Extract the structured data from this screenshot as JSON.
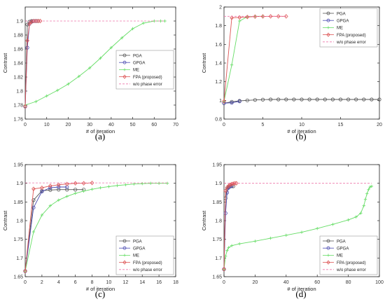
{
  "chart_data": [
    {
      "type": "line",
      "caption": "(a)",
      "xlabel": "# of iteration",
      "ylabel": "Contrast",
      "xlim": [
        0,
        70
      ],
      "ylim": [
        1.76,
        1.92
      ],
      "xticks": [
        0,
        10,
        20,
        30,
        40,
        50,
        60,
        70
      ],
      "xtick_labels": [
        "0",
        "10",
        "20",
        "30",
        "40",
        "50",
        "60",
        "70"
      ],
      "yticks": [
        1.76,
        1.78,
        1.8,
        1.82,
        1.84,
        1.86,
        1.88,
        1.9
      ],
      "ytick_labels": [
        "1.76",
        "1.78",
        "1.8",
        "1.82",
        "1.84",
        "1.86",
        "1.88",
        "1.9"
      ],
      "grid": false,
      "legend_position": "center-right",
      "series": [
        {
          "name": "PGA",
          "color": "#555555",
          "marker": "circle",
          "x": [
            0,
            1,
            2,
            3,
            4,
            5,
            6
          ],
          "y": [
            1.778,
            1.895,
            1.899,
            1.9,
            1.9,
            1.9,
            1.9
          ]
        },
        {
          "name": "GPGA",
          "color": "#4a4ab0",
          "marker": "circle",
          "x": [
            0,
            1,
            2,
            3,
            4,
            5
          ],
          "y": [
            1.778,
            1.862,
            1.896,
            1.899,
            1.9,
            1.9
          ]
        },
        {
          "name": "ME",
          "color": "#66dd66",
          "marker": "plus",
          "x": [
            0,
            5,
            10,
            15,
            20,
            25,
            30,
            35,
            40,
            45,
            50,
            55,
            60,
            63,
            65
          ],
          "y": [
            1.78,
            1.785,
            1.793,
            1.801,
            1.81,
            1.821,
            1.833,
            1.847,
            1.862,
            1.876,
            1.889,
            1.897,
            1.9,
            1.9,
            1.9
          ]
        },
        {
          "name": "FPA (proposed)",
          "color": "#dd5555",
          "marker": "diamond",
          "x": [
            0,
            1,
            2,
            3,
            4,
            5,
            6,
            7
          ],
          "y": [
            1.778,
            1.872,
            1.896,
            1.899,
            1.9,
            1.9,
            1.9,
            1.9
          ]
        },
        {
          "name": "w/o phase error",
          "color": "#ee77aa",
          "marker": "none",
          "dashed": true,
          "x": [
            0,
            65
          ],
          "y": [
            1.9,
            1.9
          ]
        }
      ]
    },
    {
      "type": "line",
      "caption": "(b)",
      "xlabel": "# of iteration",
      "ylabel": "Contrast",
      "xlim": [
        0,
        20
      ],
      "ylim": [
        0.8,
        2
      ],
      "xticks": [
        0,
        5,
        10,
        15,
        20
      ],
      "xtick_labels": [
        "0",
        "5",
        "10",
        "15",
        "20"
      ],
      "yticks": [
        0.8,
        1,
        1.2,
        1.4,
        1.6,
        1.8,
        2
      ],
      "ytick_labels": [
        "0.8",
        "1",
        "1.2",
        "1.4",
        "1.6",
        "1.8",
        "2"
      ],
      "grid": false,
      "legend_position": "top-right",
      "series": [
        {
          "name": "PGA",
          "color": "#555555",
          "marker": "circle",
          "x": [
            0,
            1,
            2,
            3,
            4,
            5,
            6,
            7,
            8,
            9,
            10,
            11,
            12,
            13,
            14,
            15,
            16,
            17,
            18,
            19,
            20
          ],
          "y": [
            0.97,
            0.985,
            0.995,
            1.0,
            1.005,
            1.008,
            1.01,
            1.01,
            1.01,
            1.01,
            1.01,
            1.01,
            1.01,
            1.01,
            1.01,
            1.01,
            1.01,
            1.01,
            1.01,
            1.01,
            1.01
          ]
        },
        {
          "name": "GPGA",
          "color": "#4a4ab0",
          "marker": "circle",
          "x": [
            0,
            1,
            2
          ],
          "y": [
            0.97,
            0.975,
            0.99
          ]
        },
        {
          "name": "ME",
          "color": "#66dd66",
          "marker": "plus",
          "x": [
            0,
            1,
            2,
            3,
            4,
            5
          ],
          "y": [
            0.99,
            1.38,
            1.85,
            1.895,
            1.9,
            1.9
          ]
        },
        {
          "name": "FPA (proposed)",
          "color": "#dd5555",
          "marker": "diamond",
          "x": [
            0,
            1,
            2,
            3,
            4,
            5,
            6,
            7,
            8
          ],
          "y": [
            0.99,
            1.885,
            1.888,
            1.893,
            1.897,
            1.899,
            1.9,
            1.9,
            1.9
          ]
        },
        {
          "name": "w/o phase error",
          "color": "#ee77aa",
          "marker": "none",
          "dashed": true,
          "x": [
            0,
            8
          ],
          "y": [
            1.9,
            1.9
          ]
        }
      ]
    },
    {
      "type": "line",
      "caption": "(c)",
      "xlabel": "# of iteration",
      "ylabel": "Contrast",
      "xlim": [
        0,
        18
      ],
      "ylim": [
        1.65,
        1.95
      ],
      "xticks": [
        0,
        2,
        4,
        6,
        8,
        10,
        12,
        14,
        16,
        18
      ],
      "xtick_labels": [
        "0",
        "2",
        "4",
        "6",
        "8",
        "10",
        "12",
        "14",
        "16",
        "18"
      ],
      "yticks": [
        1.65,
        1.7,
        1.75,
        1.8,
        1.85,
        1.9,
        1.95
      ],
      "ytick_labels": [
        "1.65",
        "1.7",
        "1.75",
        "1.8",
        "1.85",
        "1.9",
        "1.95"
      ],
      "grid": false,
      "legend_position": "bottom-right",
      "series": [
        {
          "name": "PGA",
          "color": "#555555",
          "marker": "circle",
          "x": [
            0,
            1,
            2,
            3,
            4,
            5,
            6,
            7
          ],
          "y": [
            1.665,
            1.855,
            1.88,
            1.882,
            1.883,
            1.883,
            1.883,
            1.883
          ]
        },
        {
          "name": "GPGA",
          "color": "#4a4ab0",
          "marker": "circle",
          "x": [
            0,
            1,
            2,
            3,
            4,
            5
          ],
          "y": [
            1.665,
            1.835,
            1.878,
            1.888,
            1.89,
            1.89
          ]
        },
        {
          "name": "ME",
          "color": "#66dd66",
          "marker": "plus",
          "x": [
            0,
            1,
            2,
            3,
            4,
            5,
            6,
            7,
            8,
            9,
            10,
            11,
            12,
            13,
            14,
            15,
            16,
            17
          ],
          "y": [
            1.665,
            1.77,
            1.815,
            1.84,
            1.855,
            1.865,
            1.873,
            1.879,
            1.884,
            1.888,
            1.891,
            1.894,
            1.896,
            1.898,
            1.899,
            1.9,
            1.9,
            1.9
          ]
        },
        {
          "name": "FPA (proposed)",
          "color": "#dd5555",
          "marker": "diamond",
          "x": [
            0,
            1,
            2,
            3,
            4,
            5,
            6,
            7,
            8
          ],
          "y": [
            1.665,
            1.885,
            1.888,
            1.893,
            1.896,
            1.898,
            1.9,
            1.9,
            1.901
          ]
        },
        {
          "name": "w/o phase error",
          "color": "#ee77aa",
          "marker": "none",
          "dashed": true,
          "x": [
            0,
            17
          ],
          "y": [
            1.901,
            1.901
          ]
        }
      ]
    },
    {
      "type": "line",
      "caption": "(d)",
      "xlabel": "# of iteration",
      "ylabel": "Contrast",
      "xlim": [
        0,
        100
      ],
      "ylim": [
        1.65,
        1.95
      ],
      "xticks": [
        0,
        20,
        40,
        60,
        80,
        100
      ],
      "xtick_labels": [
        "0",
        "20",
        "40",
        "60",
        "80",
        "100"
      ],
      "yticks": [
        1.65,
        1.7,
        1.75,
        1.8,
        1.85,
        1.9,
        1.95
      ],
      "ytick_labels": [
        "1.65",
        "1.7",
        "1.75",
        "1.8",
        "1.85",
        "1.9",
        "1.95"
      ],
      "grid": false,
      "legend_position": "bottom-right",
      "series": [
        {
          "name": "PGA",
          "color": "#555555",
          "marker": "circle",
          "x": [
            0,
            1,
            2,
            3,
            4,
            5,
            6
          ],
          "y": [
            1.67,
            1.86,
            1.885,
            1.89,
            1.892,
            1.892,
            1.892
          ]
        },
        {
          "name": "GPGA",
          "color": "#4a4ab0",
          "marker": "circle",
          "x": [
            0,
            1,
            2,
            3,
            4,
            5
          ],
          "y": [
            1.67,
            1.82,
            1.875,
            1.888,
            1.892,
            1.893
          ]
        },
        {
          "name": "ME",
          "color": "#66dd66",
          "marker": "plus",
          "x": [
            0,
            1,
            2,
            3,
            5,
            10,
            20,
            30,
            40,
            50,
            60,
            70,
            80,
            85,
            88,
            90,
            91,
            92,
            93,
            94,
            95
          ],
          "y": [
            1.67,
            1.705,
            1.72,
            1.728,
            1.733,
            1.738,
            1.745,
            1.753,
            1.761,
            1.769,
            1.779,
            1.79,
            1.802,
            1.81,
            1.82,
            1.84,
            1.857,
            1.872,
            1.883,
            1.89,
            1.892
          ]
        },
        {
          "name": "FPA (proposed)",
          "color": "#dd5555",
          "marker": "diamond",
          "x": [
            0,
            1,
            2,
            3,
            4,
            5,
            6,
            7,
            8
          ],
          "y": [
            1.67,
            1.88,
            1.889,
            1.893,
            1.896,
            1.898,
            1.899,
            1.9,
            1.9
          ]
        },
        {
          "name": "w/o phase error",
          "color": "#ee77aa",
          "marker": "none",
          "dashed": true,
          "x": [
            0,
            95
          ],
          "y": [
            1.9,
            1.9
          ]
        }
      ]
    }
  ]
}
